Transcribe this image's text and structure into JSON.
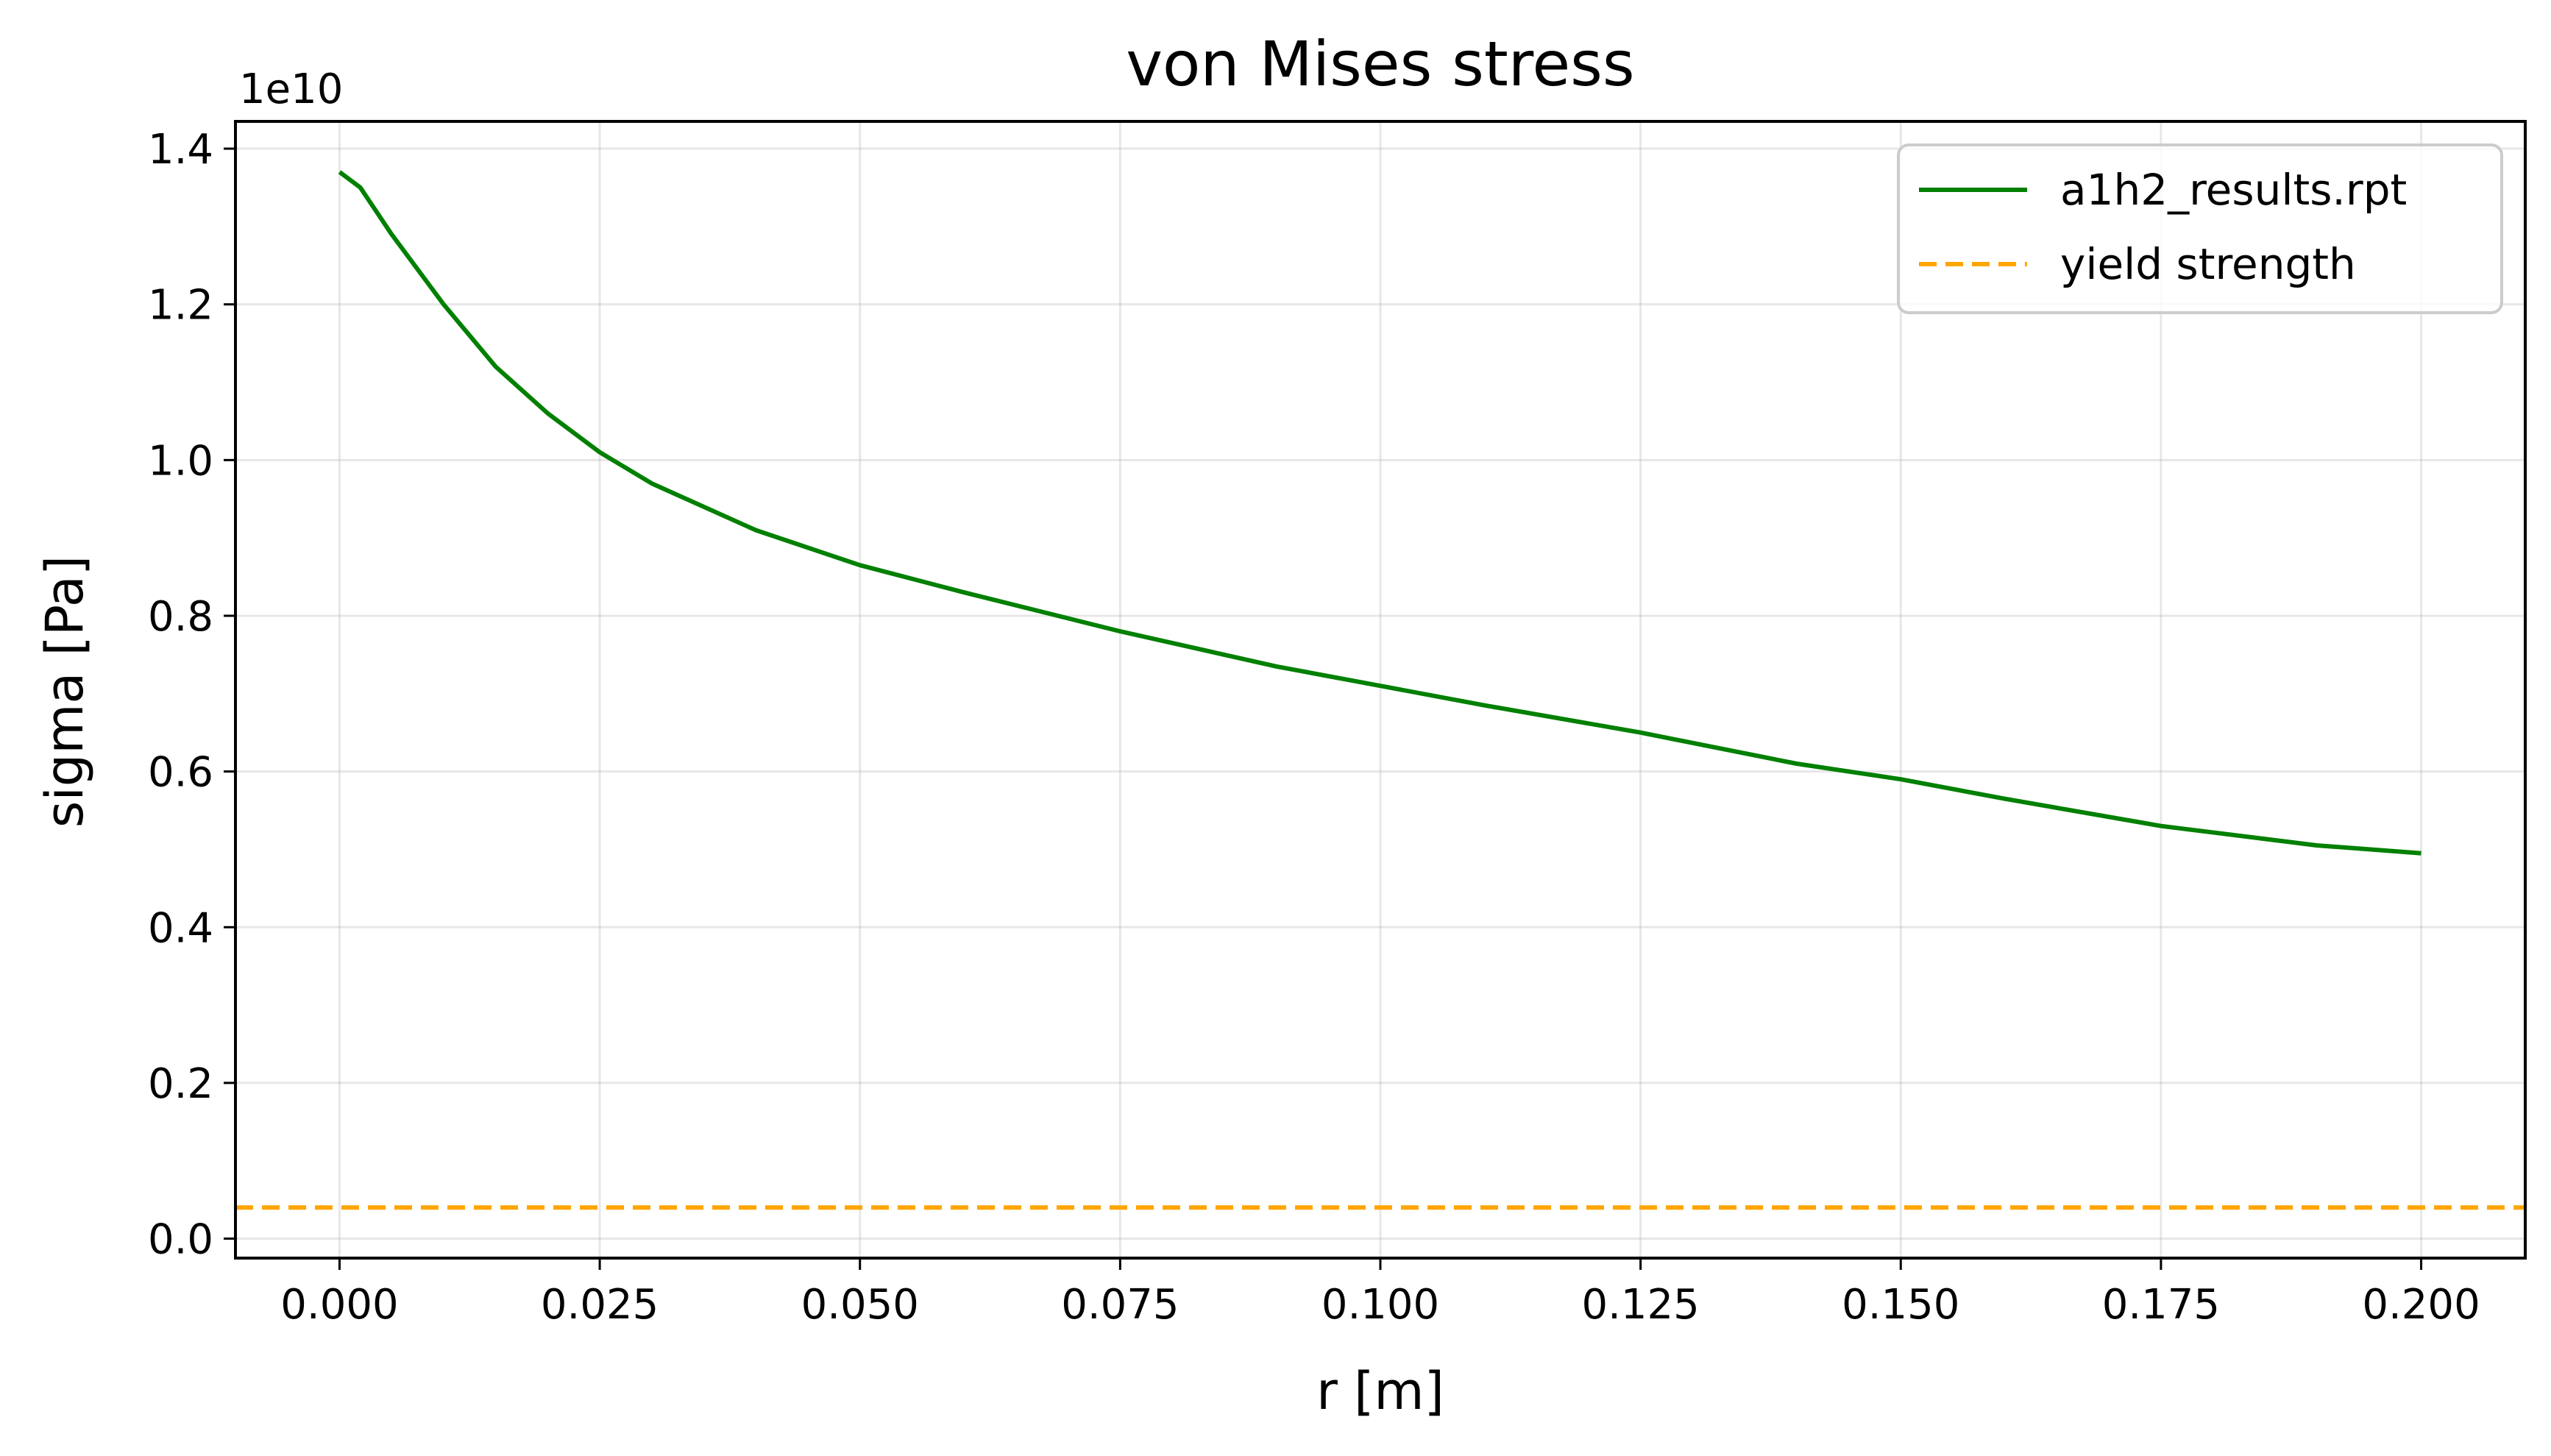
{
  "chart_data": {
    "type": "line",
    "title": "von Mises stress",
    "xlabel": "r [m]",
    "ylabel": "sigma [Pa]",
    "y_offset_label": "1e10",
    "xlim": [
      -0.01,
      0.21
    ],
    "ylim": [
      -0.025,
      1.435
    ],
    "x_ticks": [
      0.0,
      0.025,
      0.05,
      0.075,
      0.1,
      0.125,
      0.15,
      0.175,
      0.2
    ],
    "x_tick_labels": [
      "0.000",
      "0.025",
      "0.050",
      "0.075",
      "0.100",
      "0.125",
      "0.150",
      "0.175",
      "0.200"
    ],
    "y_ticks": [
      0.0,
      0.2,
      0.4,
      0.6,
      0.8,
      1.0,
      1.2,
      1.4
    ],
    "y_tick_labels": [
      "0.0",
      "0.2",
      "0.4",
      "0.6",
      "0.8",
      "1.0",
      "1.2",
      "1.4"
    ],
    "grid": true,
    "legend_position": "top-right",
    "series": [
      {
        "name": "a1h2_results.rpt",
        "color": "#008000",
        "style": "solid",
        "x": [
          0.0,
          0.002,
          0.005,
          0.01,
          0.015,
          0.02,
          0.025,
          0.03,
          0.04,
          0.05,
          0.06,
          0.075,
          0.09,
          0.1,
          0.11,
          0.125,
          0.14,
          0.15,
          0.16,
          0.175,
          0.19,
          0.2
        ],
        "y": [
          1.37,
          1.35,
          1.29,
          1.2,
          1.12,
          1.06,
          1.01,
          0.97,
          0.91,
          0.865,
          0.83,
          0.78,
          0.735,
          0.71,
          0.685,
          0.65,
          0.61,
          0.59,
          0.565,
          0.53,
          0.505,
          0.495
        ]
      },
      {
        "name": "yield strength",
        "color": "#ffa500",
        "style": "dashed",
        "x": [
          -0.01,
          0.21
        ],
        "y": [
          0.04,
          0.04
        ]
      }
    ]
  }
}
